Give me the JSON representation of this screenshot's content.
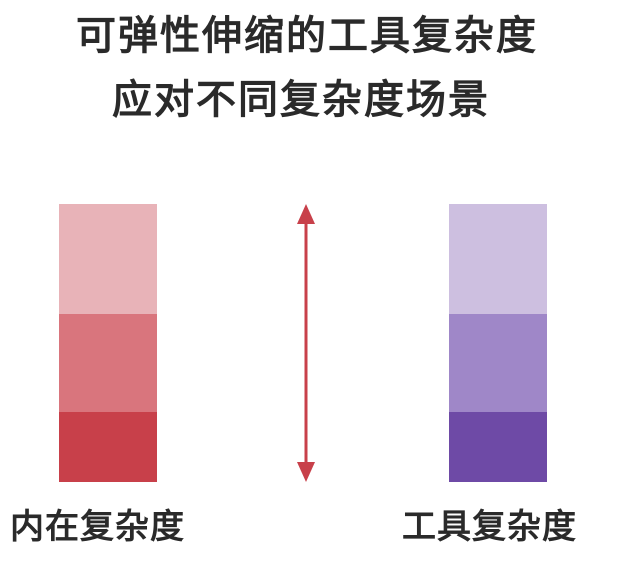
{
  "title": {
    "line1": "可弹性伸缩的工具复杂度",
    "line2": "应对不同复杂度场景"
  },
  "left_column": {
    "label": "内在复杂度",
    "segments": [
      {
        "level": "light",
        "color": "#e8b3b8"
      },
      {
        "level": "medium",
        "color": "#d9757d"
      },
      {
        "level": "dark",
        "color": "#c8404a"
      }
    ]
  },
  "right_column": {
    "label": "工具复杂度",
    "segments": [
      {
        "level": "light",
        "color": "#cdbfe0"
      },
      {
        "level": "medium",
        "color": "#9f87c8"
      },
      {
        "level": "dark",
        "color": "#6e4aa6"
      }
    ]
  },
  "arrow": {
    "type": "double-headed-vertical",
    "color": "#c8404a"
  }
}
